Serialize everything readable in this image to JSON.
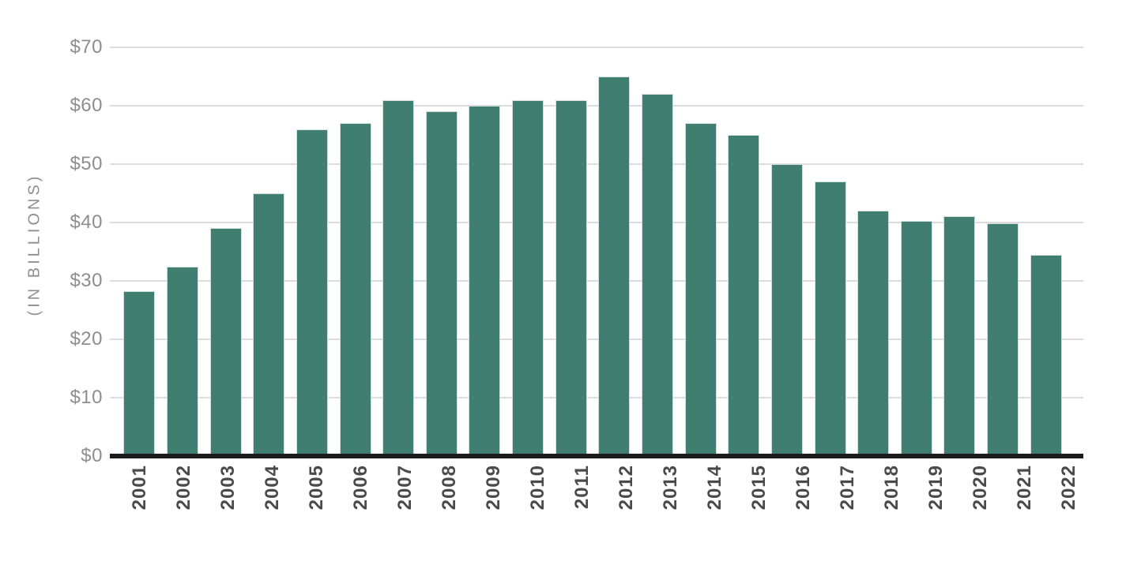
{
  "chart_data": {
    "type": "bar",
    "title": "",
    "xlabel": "",
    "ylabel": "(IN BILLIONS)",
    "categories": [
      "2001",
      "2002",
      "2003",
      "2004",
      "2005",
      "2006",
      "2007",
      "2008",
      "2009",
      "2010",
      "2011",
      "2012",
      "2013",
      "2014",
      "2015",
      "2016",
      "2017",
      "2018",
      "2019",
      "2020",
      "2021",
      "2022"
    ],
    "values": [
      28.2,
      32.5,
      39,
      45,
      56,
      57,
      61,
      59,
      60,
      61,
      61,
      65,
      62,
      57,
      55,
      50,
      47,
      42,
      40.3,
      41.1,
      39.8,
      34.5
    ],
    "ylim": [
      0,
      70
    ],
    "ytick_values": [
      0,
      10,
      20,
      30,
      40,
      50,
      60,
      70
    ],
    "ytick_labels": [
      "$0",
      "$10",
      "$20",
      "$30",
      "$40",
      "$50",
      "$60",
      "$70"
    ],
    "grid": true,
    "legend": false,
    "bar_orientation": "vertical"
  },
  "colors": {
    "bar_fill": "#3f7e71",
    "bar_edge": "#d3dfdb",
    "gridline": "#dcdcdc",
    "axis_line": "#1c1c1c",
    "ytick_text": "#8d8d8d",
    "xtick_text": "#4a4a4a",
    "ylabel_text": "#8e8e8e",
    "background": "#ffffff"
  }
}
